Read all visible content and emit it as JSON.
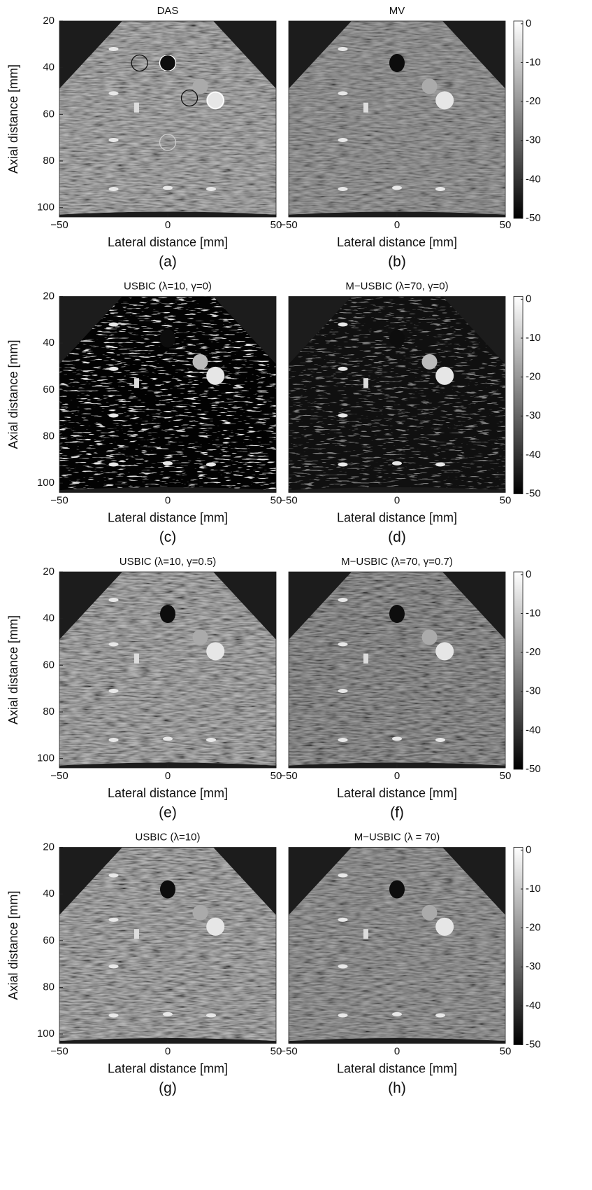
{
  "chart_data": [
    {
      "type": "image",
      "title": "DAS",
      "xlabel": "Lateral distance [mm]",
      "ylabel": "Axial distance [mm]",
      "caption": "(a)",
      "xlim": [
        -50,
        50
      ],
      "ylim": [
        20,
        104
      ],
      "xticks": [
        {
          "value": -50,
          "label": "−50"
        },
        0,
        50
      ],
      "yticks": [
        20,
        40,
        60,
        80,
        100
      ]
    },
    {
      "type": "image",
      "title": "MV",
      "xlabel": "Lateral distance [mm]",
      "caption": "(b)",
      "xlim": [
        -50,
        50
      ],
      "ylim": [
        20,
        104
      ],
      "xticks": [
        {
          "value": -50,
          "label": "−50"
        },
        0,
        50
      ],
      "colorbar": {
        "lim": [
          -50,
          0.7
        ],
        "ticks": [
          0,
          -10,
          -20,
          -30,
          -40,
          -50
        ]
      }
    },
    {
      "type": "image",
      "title": "USBIC (λ=10, γ=0)",
      "xlabel": "Lateral distance [mm]",
      "ylabel": "Axial distance [mm]",
      "caption": "(c)",
      "xlim": [
        -50,
        50
      ],
      "ylim": [
        20,
        104
      ],
      "xticks": [
        {
          "value": -50,
          "label": "−50"
        },
        0,
        50
      ],
      "yticks": [
        20,
        40,
        60,
        80,
        100
      ]
    },
    {
      "type": "image",
      "title": "M−USBIC (λ=70, γ=0)",
      "xlabel": "Lateral distance [mm]",
      "caption": "(d)",
      "xlim": [
        -50,
        50
      ],
      "ylim": [
        20,
        104
      ],
      "xticks": [
        {
          "value": -50,
          "label": "−50"
        },
        0,
        50
      ],
      "colorbar": {
        "lim": [
          -50,
          0.7
        ],
        "ticks": [
          0,
          -10,
          -20,
          -30,
          -40,
          -50
        ]
      }
    },
    {
      "type": "image",
      "title": "USBIC (λ=10, γ=0.5)",
      "xlabel": "Lateral distance [mm]",
      "ylabel": "Axial distance [mm]",
      "caption": "(e)",
      "xlim": [
        -50,
        50
      ],
      "ylim": [
        20,
        104
      ],
      "xticks": [
        {
          "value": -50,
          "label": "−50"
        },
        0,
        50
      ],
      "yticks": [
        20,
        40,
        60,
        80,
        100
      ]
    },
    {
      "type": "image",
      "title": "M−USBIC (λ=70, γ=0.7)",
      "xlabel": "Lateral distance [mm]",
      "caption": "(f)",
      "xlim": [
        -50,
        50
      ],
      "ylim": [
        20,
        104
      ],
      "xticks": [
        {
          "value": -50,
          "label": "−50"
        },
        0,
        50
      ],
      "colorbar": {
        "lim": [
          -50,
          0.7
        ],
        "ticks": [
          0,
          -10,
          -20,
          -30,
          -40,
          -50
        ]
      }
    },
    {
      "type": "image",
      "title": "USBIC (λ=10)",
      "xlabel": "Lateral distance [mm]",
      "ylabel": "Axial distance [mm]",
      "caption": "(g)",
      "xlim": [
        -50,
        50
      ],
      "ylim": [
        20,
        104
      ],
      "xticks": [
        {
          "value": -50,
          "label": "−50"
        },
        0,
        50
      ],
      "yticks": [
        20,
        40,
        60,
        80,
        100
      ]
    },
    {
      "type": "image",
      "title": "M−USBIC (λ = 70)",
      "xlabel": "Lateral distance [mm]",
      "caption": "(h)",
      "xlim": [
        -50,
        50
      ],
      "ylim": [
        20,
        104
      ],
      "xticks": [
        {
          "value": -50,
          "label": "−50"
        },
        0,
        50
      ],
      "colorbar": {
        "lim": [
          -50,
          0.7
        ],
        "ticks": [
          0,
          -10,
          -20,
          -30,
          -40,
          -50
        ]
      }
    }
  ]
}
